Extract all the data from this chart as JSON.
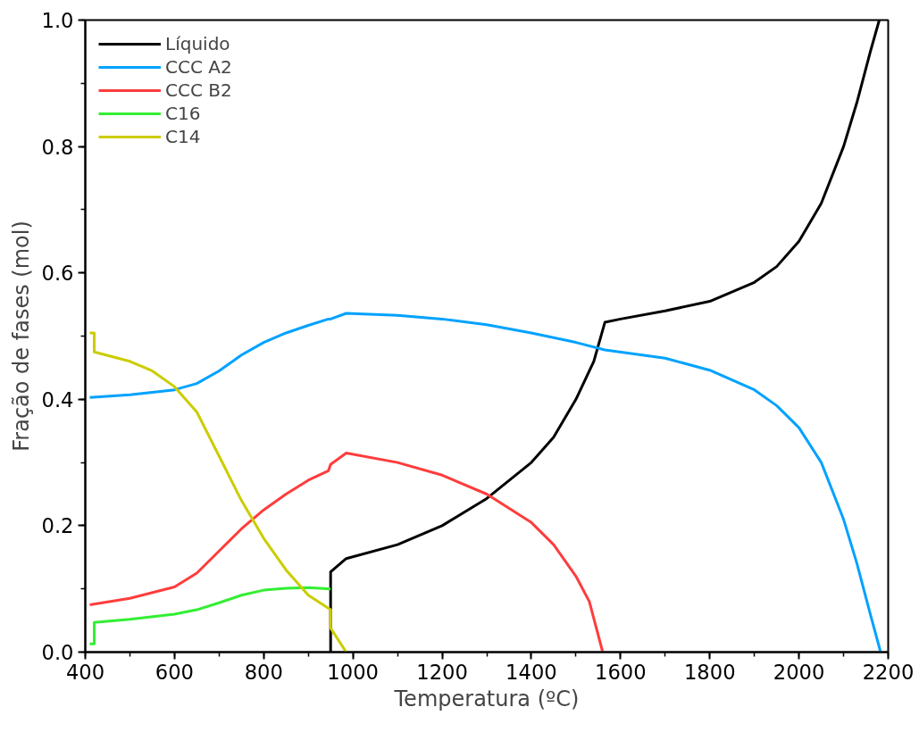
{
  "chart_data": {
    "type": "line",
    "xlabel": "Temperatura (ºC)",
    "ylabel": "Fração de fases (mol)",
    "xlim": [
      400,
      2200
    ],
    "ylim": [
      0,
      1
    ],
    "xticks": [
      400,
      600,
      800,
      1000,
      1200,
      1400,
      1600,
      1800,
      2000,
      2200
    ],
    "yticks": [
      {
        "value": 0,
        "label": "0.0"
      },
      {
        "value": 0.2,
        "label": "0.2"
      },
      {
        "value": 0.4,
        "label": "0.4"
      },
      {
        "value": 0.6,
        "label": "0.6"
      },
      {
        "value": 0.8,
        "label": "0.8"
      },
      {
        "value": 1,
        "label": "1.0"
      }
    ],
    "grid": false,
    "legend": "top left",
    "marker": "none",
    "line_style": "solid",
    "series": [
      {
        "name": "Líquido",
        "color": "#000000",
        "x": [
          950,
          950,
          985,
          1100,
          1200,
          1300,
          1400,
          1450,
          1500,
          1540,
          1565,
          1600,
          1700,
          1800,
          1900,
          1950,
          2000,
          2050,
          2100,
          2130,
          2160,
          2180
        ],
        "values": [
          0,
          0.127,
          0.148,
          0.17,
          0.2,
          0.243,
          0.3,
          0.34,
          0.4,
          0.46,
          0.522,
          0.527,
          0.54,
          0.555,
          0.585,
          0.61,
          0.65,
          0.71,
          0.8,
          0.87,
          0.95,
          1.0
        ]
      },
      {
        "name": "CCC A2",
        "color": "#00a2ff",
        "x": [
          410,
          500,
          600,
          650,
          700,
          750,
          800,
          850,
          900,
          945,
          950,
          985,
          1100,
          1200,
          1300,
          1400,
          1500,
          1565,
          1700,
          1800,
          1900,
          1950,
          2000,
          2050,
          2100,
          2130,
          2160,
          2183
        ],
        "values": [
          0.403,
          0.407,
          0.415,
          0.425,
          0.445,
          0.47,
          0.49,
          0.505,
          0.517,
          0.527,
          0.527,
          0.536,
          0.533,
          0.527,
          0.518,
          0.505,
          0.49,
          0.478,
          0.465,
          0.446,
          0.415,
          0.39,
          0.355,
          0.3,
          0.21,
          0.14,
          0.06,
          0
        ]
      },
      {
        "name": "CCC B2",
        "color": "#ff3c3c",
        "x": [
          410,
          500,
          600,
          650,
          700,
          750,
          800,
          850,
          900,
          945,
          950,
          985,
          1100,
          1200,
          1300,
          1400,
          1450,
          1500,
          1530,
          1560
        ],
        "values": [
          0.075,
          0.085,
          0.103,
          0.125,
          0.16,
          0.195,
          0.225,
          0.25,
          0.272,
          0.287,
          0.297,
          0.315,
          0.3,
          0.28,
          0.25,
          0.205,
          0.17,
          0.12,
          0.08,
          0
        ]
      },
      {
        "name": "C16",
        "color": "#33ee33",
        "x": [
          410,
          420,
          420,
          500,
          600,
          650,
          700,
          750,
          800,
          850,
          900,
          950
        ],
        "values": [
          0.013,
          0.013,
          0.047,
          0.052,
          0.06,
          0.067,
          0.078,
          0.09,
          0.098,
          0.101,
          0.102,
          0.1
        ]
      },
      {
        "name": "C14",
        "color": "#cccc00",
        "x": [
          410,
          420,
          420,
          500,
          550,
          600,
          650,
          700,
          750,
          800,
          850,
          900,
          950,
          950,
          985
        ],
        "values": [
          0.505,
          0.505,
          0.475,
          0.46,
          0.445,
          0.42,
          0.38,
          0.31,
          0.24,
          0.18,
          0.13,
          0.09,
          0.067,
          0.038,
          0
        ]
      }
    ]
  }
}
